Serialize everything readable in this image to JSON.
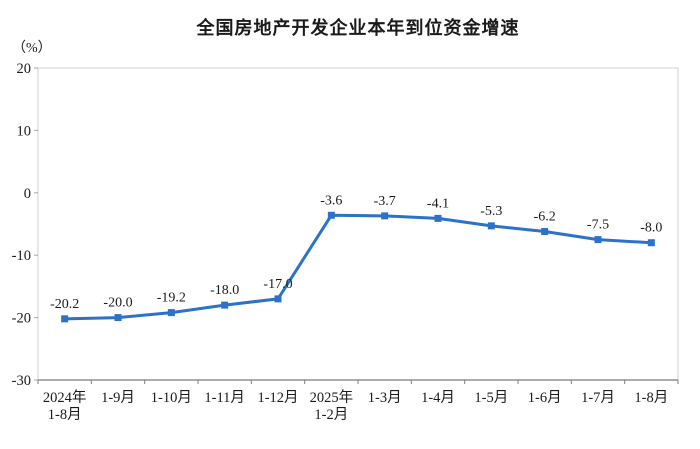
{
  "chart_data": {
    "type": "line",
    "title": "全国房地产开发企业本年到位资金增速",
    "unit_label": "（%）",
    "categories": [
      "2024年\n1-8月",
      "1-9月",
      "1-10月",
      "1-11月",
      "1-12月",
      "2025年\n1-2月",
      "1-3月",
      "1-4月",
      "1-5月",
      "1-6月",
      "1-7月",
      "1-8月"
    ],
    "values": [
      -20.2,
      -20.0,
      -19.2,
      -18.0,
      -17.0,
      -3.6,
      -3.7,
      -4.1,
      -5.3,
      -6.2,
      -7.5,
      -8.0
    ],
    "data_labels": [
      "-20.2",
      "-20.0",
      "-19.2",
      "-18.0",
      "-17.0",
      "-3.6",
      "-3.7",
      "-4.1",
      "-5.3",
      "-6.2",
      "-7.5",
      "-8.0"
    ],
    "xlabel": "",
    "ylabel": "",
    "ylim": [
      -30,
      20
    ],
    "y_ticks": [
      20,
      10,
      0,
      -10,
      -20,
      -30
    ],
    "grid": false,
    "legend": "none",
    "marker": "square",
    "colors": {
      "line": "#2B72C8",
      "marker": "#2B72C8",
      "text": "#1a1a1a",
      "plot_border": "#d9d9d9",
      "axis": "#7f7f7f",
      "minor_tick": "#a6a6a6"
    }
  }
}
